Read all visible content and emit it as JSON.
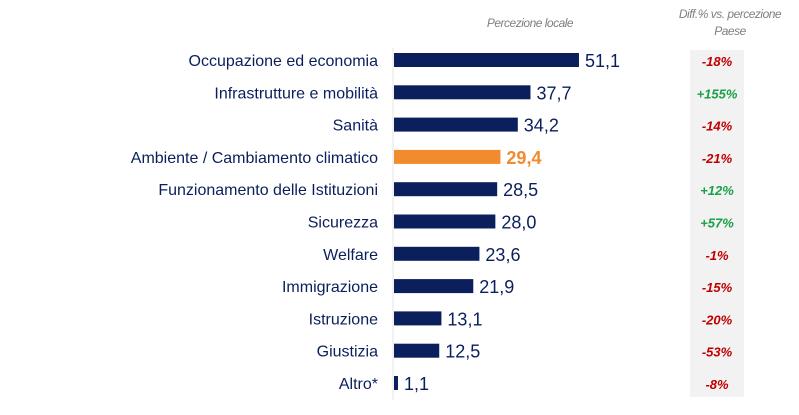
{
  "chart_data": {
    "type": "bar",
    "orientation": "horizontal",
    "value_header": "Percezione locale",
    "diff_header_line1": "Diff.% vs. percezione",
    "diff_header_line2": "Paese",
    "categories": [
      "Occupazione ed economia",
      "Infrastrutture e mobilità",
      "Sanità",
      "Ambiente / Cambiamento climatico",
      "Funzionamento delle Istituzioni",
      "Sicurezza",
      "Welfare",
      "Immigrazione",
      "Istruzione",
      "Giustizia",
      "Altro*"
    ],
    "values": [
      51.1,
      37.7,
      34.2,
      29.4,
      28.5,
      28.0,
      23.6,
      21.9,
      13.1,
      12.5,
      1.1
    ],
    "value_labels": [
      "51,1",
      "37,7",
      "34,2",
      "29,4",
      "28,5",
      "28,0",
      "23,6",
      "21,9",
      "13,1",
      "12,5",
      "1,1"
    ],
    "diffs": [
      "-18%",
      "+155%",
      "-14%",
      "-21%",
      "+12%",
      "+57%",
      "-1%",
      "-15%",
      "-20%",
      "-53%",
      "-8%"
    ],
    "highlight_index": 3,
    "colors": {
      "bar": "#0b1f5c",
      "highlight": "#f28a2e",
      "negative": "#c00000",
      "positive": "#1aa046",
      "diff_bg": "#f2f2f2",
      "header": "#7f7f7f"
    }
  }
}
